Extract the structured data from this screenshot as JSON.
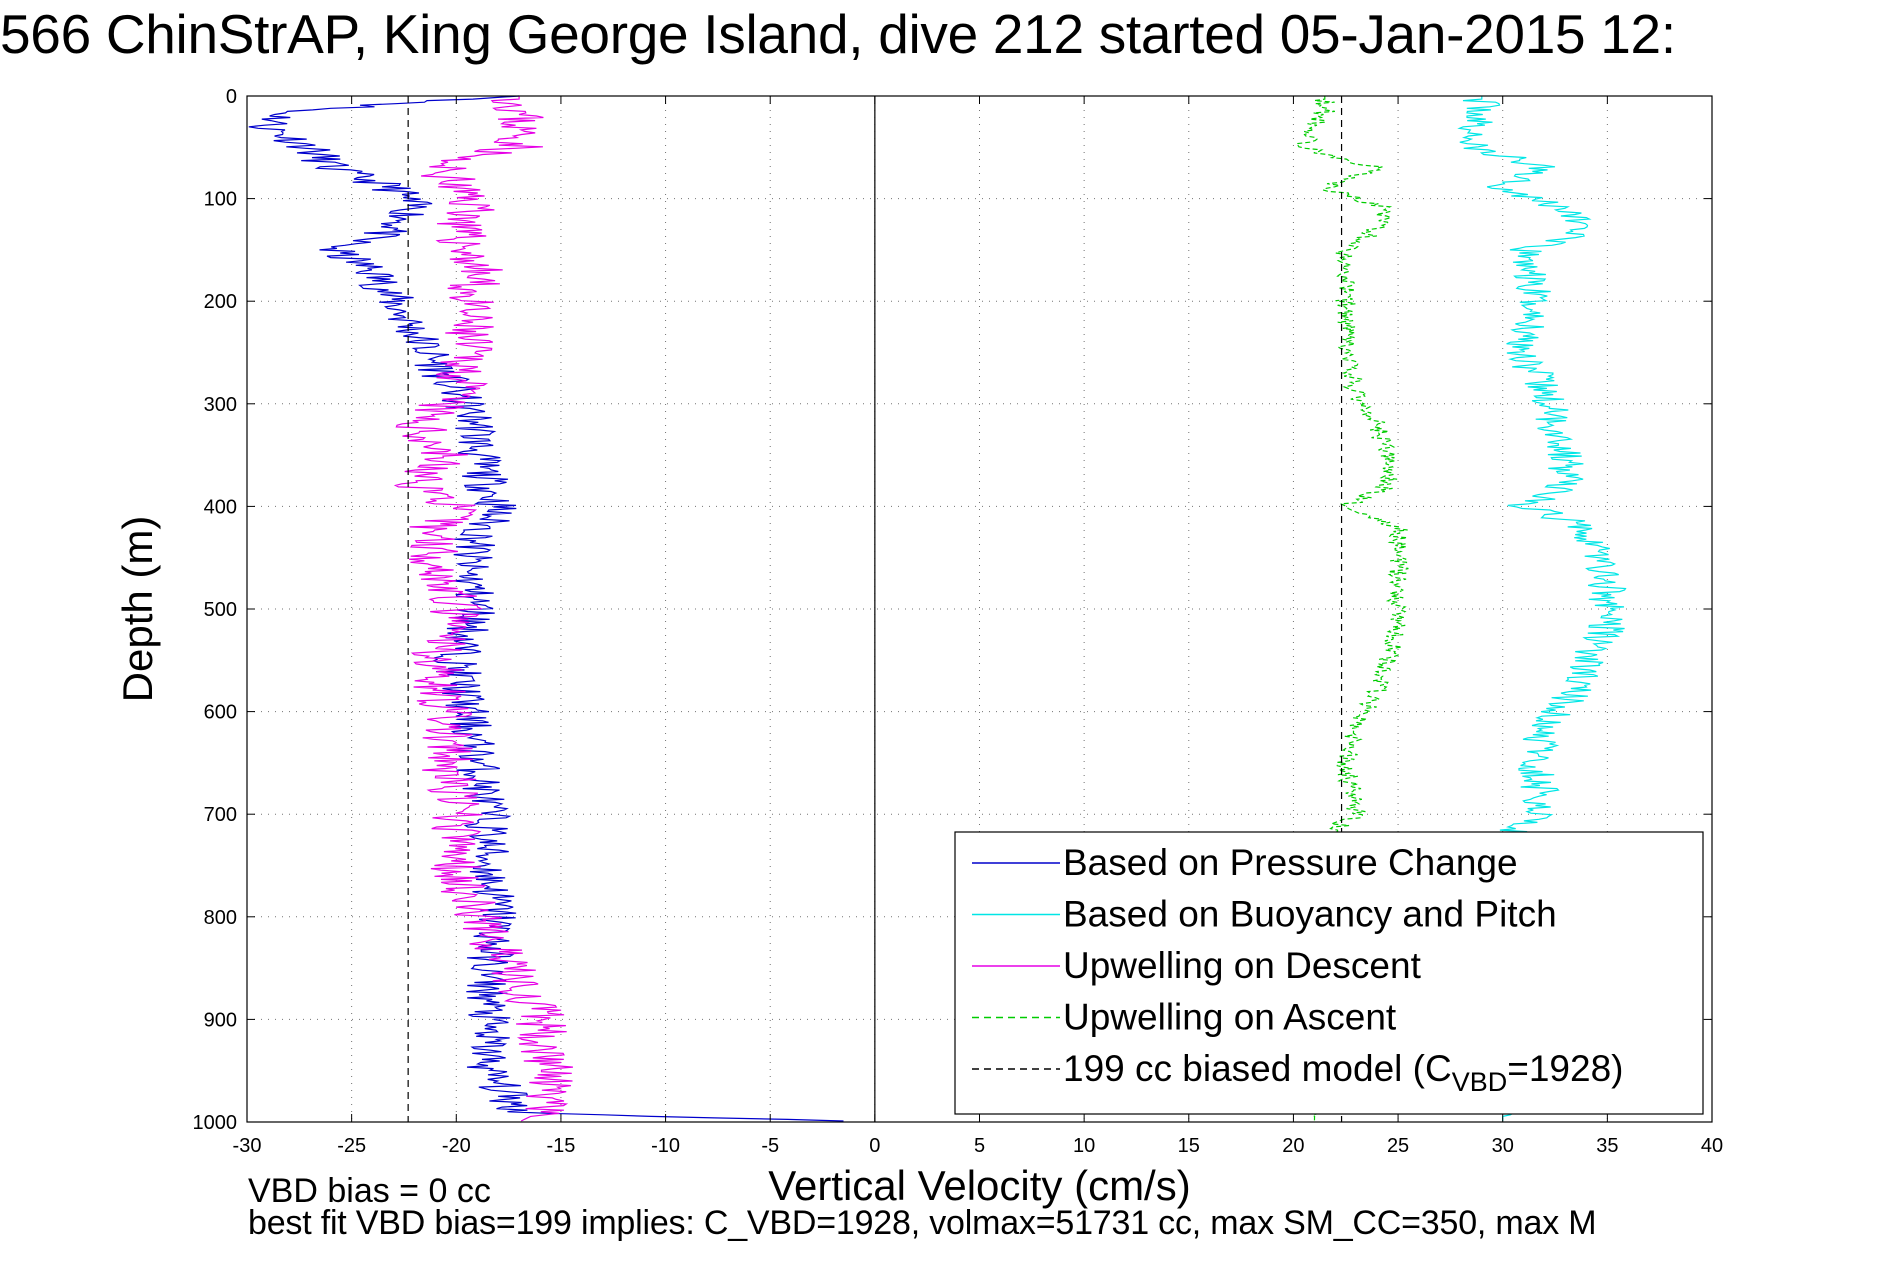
{
  "title": "566 ChinStrAP, King George Island, dive 212 started 05-Jan-2015 12:",
  "notes": {
    "line1": "VBD bias = 0 cc",
    "line2": "best fit VBD bias=199 implies: C_VBD=1928, volmax=51731 cc, max SM_CC=350, max M"
  },
  "colors": {
    "pressure": "#0000cc",
    "buoyancy": "#00e6e6",
    "descent": "#e600e6",
    "ascent": "#00cc00",
    "model": "#000000",
    "grid": "#000000"
  },
  "chart_data": {
    "type": "line",
    "xlabel": "Vertical Velocity (cm/s)",
    "ylabel": "Depth (m)",
    "xlim": [
      -30,
      40
    ],
    "ylim": [
      1000,
      0
    ],
    "y_inverted": true,
    "grid": true,
    "legend_position": "bottom-right",
    "x_ticks": [
      -30,
      -25,
      -20,
      -15,
      -10,
      -5,
      0,
      5,
      10,
      15,
      20,
      25,
      30,
      35,
      40
    ],
    "y_ticks": [
      0,
      100,
      200,
      300,
      400,
      500,
      600,
      700,
      800,
      900,
      1000
    ],
    "legend": [
      {
        "label": "Based on Pressure Change",
        "key": "pressure",
        "dash": false
      },
      {
        "label": "Based on Buoyancy and Pitch",
        "key": "buoyancy",
        "dash": false
      },
      {
        "label": "Upwelling on Descent",
        "key": "descent",
        "dash": false
      },
      {
        "label": "Upwelling on Ascent",
        "key": "ascent",
        "dash": true
      },
      {
        "label": "199 cc biased model (C",
        "sub": "VBD",
        "suffix": "=1928)",
        "key": "model",
        "dash": true
      }
    ],
    "series": [
      {
        "name": "Based on Pressure Change",
        "key": "pressure",
        "depth": [
          0,
          15,
          30,
          50,
          70,
          90,
          110,
          130,
          150,
          170,
          200,
          230,
          260,
          290,
          320,
          350,
          380,
          400,
          430,
          460,
          500,
          550,
          600,
          650,
          700,
          750,
          800,
          850,
          900,
          950,
          990,
          995,
          998,
          1000
        ],
        "velocity": [
          -17,
          -28,
          -29,
          -27,
          -26,
          -23,
          -22,
          -23,
          -26,
          -24,
          -23,
          -22,
          -21,
          -20,
          -19,
          -19,
          -18.5,
          -18,
          -19,
          -19.5,
          -19,
          -20,
          -19.5,
          -19,
          -18.5,
          -18.5,
          -18,
          -18.5,
          -18.5,
          -18.5,
          -17,
          -10,
          -3,
          0
        ]
      },
      {
        "name": "Upwelling on Descent",
        "key": "descent",
        "depth": [
          0,
          15,
          30,
          50,
          65,
          90,
          110,
          130,
          150,
          170,
          200,
          230,
          260,
          290,
          320,
          350,
          375,
          400,
          420,
          450,
          480,
          500,
          550,
          600,
          650,
          700,
          750,
          800,
          850,
          900,
          950,
          990,
          1000
        ],
        "velocity": [
          -17,
          -17,
          -17,
          -17,
          -21,
          -20,
          -19,
          -20,
          -19.5,
          -19,
          -19.5,
          -19.5,
          -19.5,
          -20,
          -22,
          -20.5,
          -22,
          -20,
          -21,
          -21,
          -20.5,
          -20,
          -21,
          -20.5,
          -20.5,
          -20,
          -20,
          -19,
          -17.5,
          -16,
          -15.5,
          -16,
          -17
        ]
      },
      {
        "name": "Based on Buoyancy and Pitch",
        "key": "buoyancy",
        "depth": [
          0,
          15,
          30,
          50,
          70,
          90,
          110,
          130,
          150,
          200,
          250,
          290,
          320,
          350,
          380,
          400,
          420,
          440,
          480,
          520,
          550,
          580,
          610,
          650,
          700,
          720,
          1000
        ],
        "velocity": [
          29,
          29,
          28.5,
          28.5,
          32,
          30,
          33,
          34,
          31,
          31.5,
          31,
          32,
          32.5,
          33,
          33,
          31,
          34,
          34.5,
          35,
          35,
          34,
          33.5,
          32,
          31.5,
          32,
          30,
          30
        ]
      },
      {
        "name": "Upwelling on Ascent",
        "key": "ascent",
        "depth": [
          0,
          15,
          30,
          50,
          70,
          90,
          110,
          130,
          150,
          200,
          250,
          290,
          320,
          350,
          380,
          400,
          420,
          440,
          480,
          520,
          550,
          580,
          610,
          650,
          700,
          720,
          1000
        ],
        "velocity": [
          21.5,
          21.5,
          21,
          20.5,
          24,
          21.5,
          24.5,
          24,
          22.5,
          22.5,
          22.5,
          23,
          24,
          24.5,
          24.5,
          22.5,
          25,
          25,
          25,
          25,
          24.5,
          24,
          23,
          22.5,
          23,
          21.5,
          21
        ]
      },
      {
        "name": "199 cc biased model (CVBD=1928)",
        "key": "model",
        "depth": [
          0,
          1000
        ],
        "velocity": [
          -22.3,
          -22.3
        ],
        "mirror_velocity": [
          22.3,
          22.3
        ]
      }
    ]
  }
}
